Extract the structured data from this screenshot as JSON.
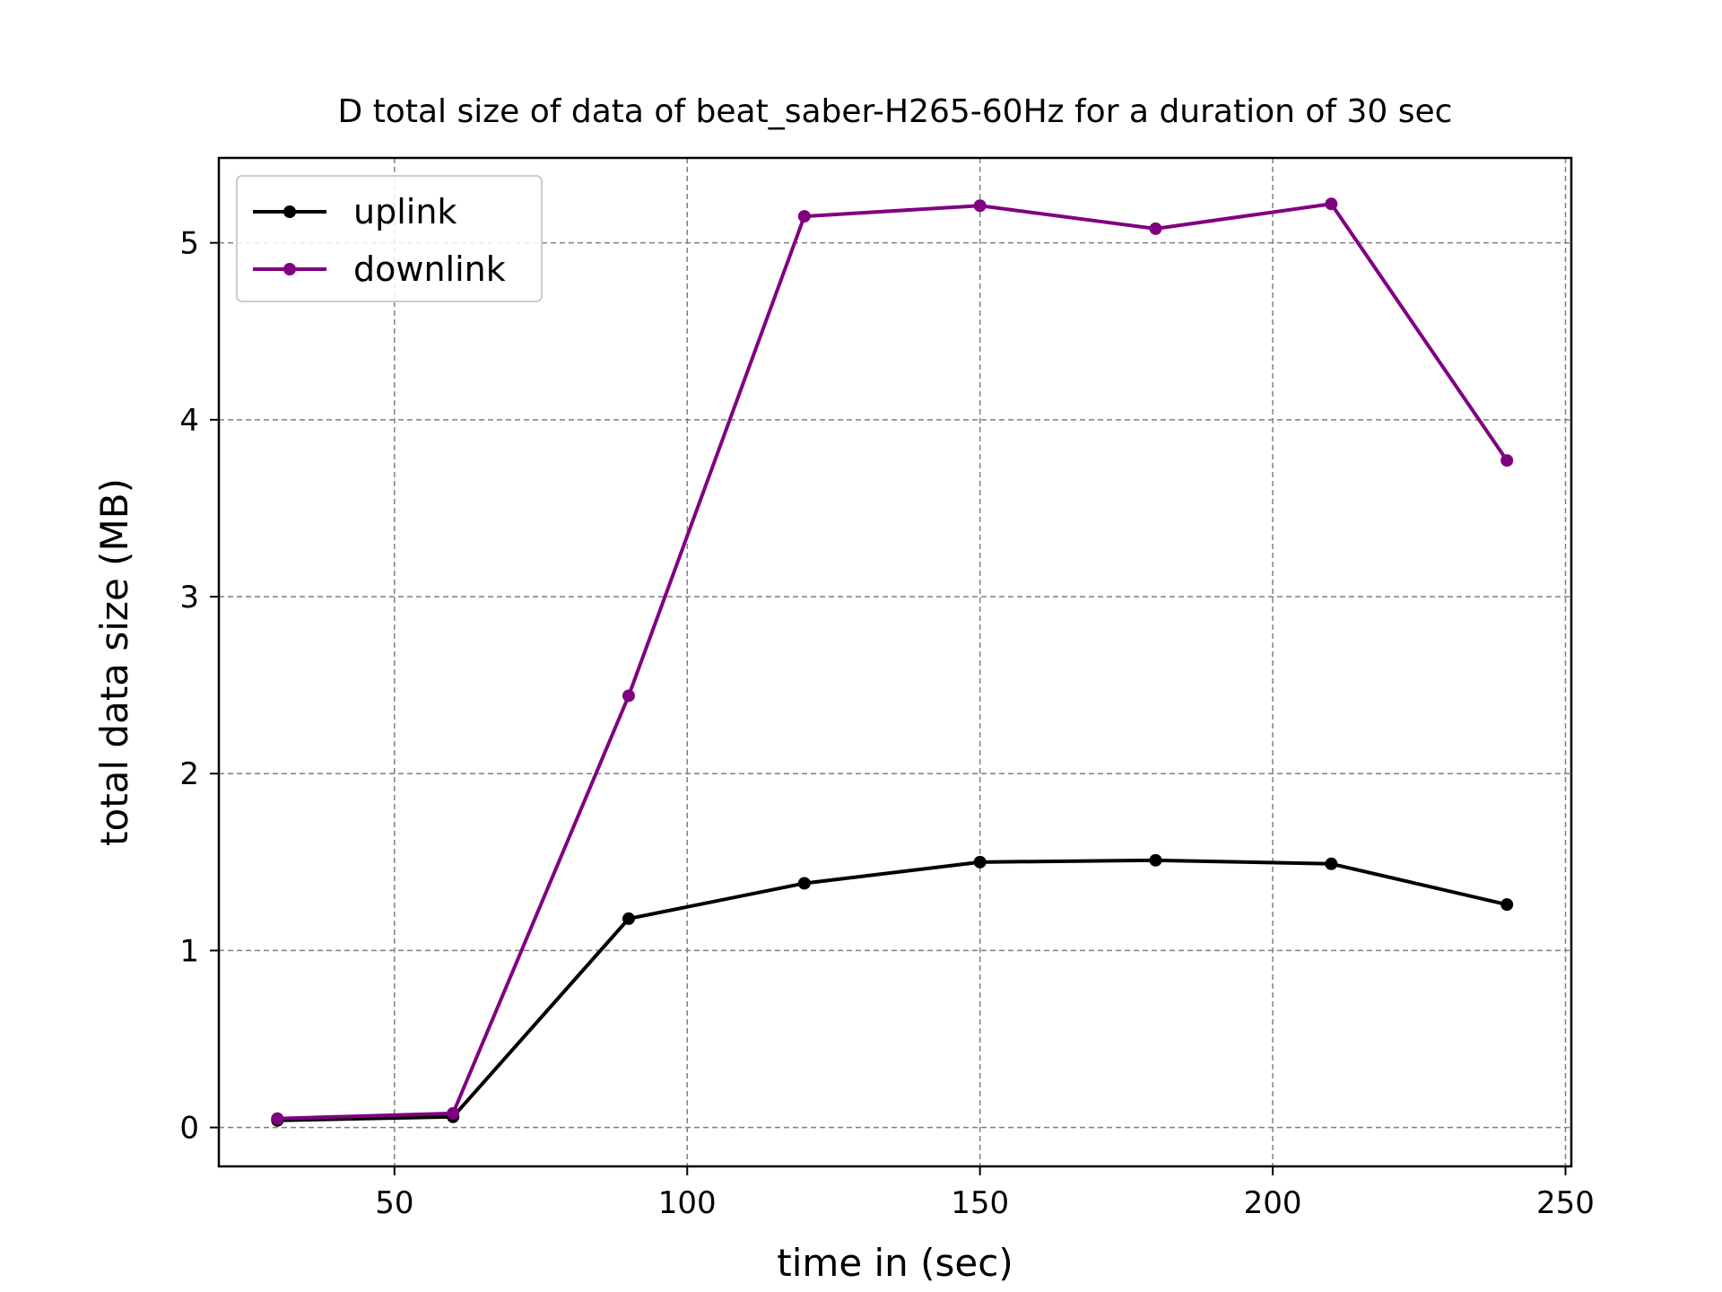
{
  "chart_data": {
    "type": "line",
    "title": "D total size of data of beat_saber-H265-60Hz for a duration of 30 sec",
    "xlabel": "time in (sec)",
    "ylabel": "total data size (MB)",
    "xlim": [
      20,
      251
    ],
    "ylim": [
      -0.22,
      5.48
    ],
    "xticks": [
      50,
      100,
      150,
      200,
      250
    ],
    "yticks": [
      0,
      1,
      2,
      3,
      4,
      5
    ],
    "grid": true,
    "legend_position": "top-left",
    "x": [
      30,
      60,
      90,
      120,
      150,
      180,
      210,
      240
    ],
    "series": [
      {
        "name": "uplink",
        "color": "#000000",
        "values": [
          0.04,
          0.06,
          1.18,
          1.38,
          1.5,
          1.51,
          1.49,
          1.26
        ]
      },
      {
        "name": "downlink",
        "color": "#800080",
        "values": [
          0.05,
          0.08,
          2.44,
          5.15,
          5.21,
          5.08,
          5.22,
          3.77
        ]
      }
    ]
  }
}
